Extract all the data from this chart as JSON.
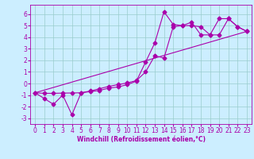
{
  "xlabel": "Windchill (Refroidissement éolien,°C)",
  "bg_color": "#cceeff",
  "line_color": "#aa00aa",
  "grid_color": "#99cccc",
  "xlim": [
    -0.5,
    23.5
  ],
  "ylim": [
    -3.5,
    6.8
  ],
  "yticks": [
    -3,
    -2,
    -1,
    0,
    1,
    2,
    3,
    4,
    5,
    6
  ],
  "xticks": [
    0,
    1,
    2,
    3,
    4,
    5,
    6,
    7,
    8,
    9,
    10,
    11,
    12,
    13,
    14,
    15,
    16,
    17,
    18,
    19,
    20,
    21,
    22,
    23
  ],
  "line1_x": [
    0,
    1,
    2,
    3,
    4,
    5,
    6,
    7,
    8,
    9,
    10,
    11,
    12,
    13,
    14,
    15,
    16,
    17,
    18,
    19,
    20,
    21,
    22,
    23
  ],
  "line1_y": [
    -0.8,
    -1.3,
    -1.8,
    -1.0,
    -2.7,
    -0.8,
    -0.7,
    -0.6,
    -0.4,
    -0.3,
    -0.1,
    0.2,
    1.85,
    3.5,
    6.2,
    5.1,
    5.0,
    5.3,
    4.2,
    4.2,
    5.6,
    5.6,
    4.9,
    4.5
  ],
  "line2_x": [
    0,
    1,
    2,
    3,
    4,
    5,
    6,
    7,
    8,
    9,
    10,
    11,
    12,
    13,
    14,
    15,
    16,
    17,
    18,
    19,
    20,
    21,
    22,
    23
  ],
  "line2_y": [
    -0.8,
    -0.85,
    -0.85,
    -0.83,
    -0.82,
    -0.8,
    -0.65,
    -0.45,
    -0.25,
    -0.1,
    0.05,
    0.25,
    1.0,
    2.4,
    2.2,
    4.9,
    5.0,
    5.0,
    4.9,
    4.2,
    4.2,
    5.6,
    4.9,
    4.5
  ],
  "line3_x": [
    0,
    23
  ],
  "line3_y": [
    -0.8,
    4.5
  ],
  "marker": "D",
  "marker_size": 2.5,
  "linewidth": 0.8,
  "tick_fontsize": 5.5,
  "xlabel_fontsize": 5.5
}
